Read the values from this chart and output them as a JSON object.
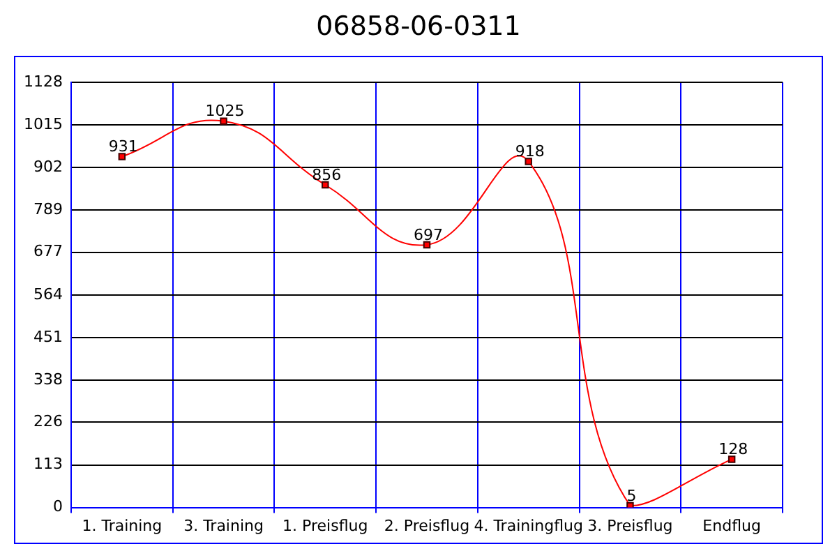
{
  "chart_data": {
    "type": "line",
    "title": "06858-06-0311",
    "categories": [
      "1. Training",
      "3. Training",
      "1. Preisflug",
      "2. Preisflug",
      "4. Trainingflug",
      "3. Preisflug",
      "Endflug"
    ],
    "series": [
      {
        "color": "#ff0000",
        "values": [
          931,
          1025,
          856,
          697,
          918,
          5,
          128
        ]
      }
    ],
    "ylim": [
      0,
      1128
    ],
    "yticks": [
      0,
      113,
      226,
      338,
      451,
      564,
      677,
      789,
      902,
      1015,
      1128
    ],
    "grid": true,
    "legend": false,
    "marker": "square",
    "line_style": "solid",
    "data_labels": true
  }
}
